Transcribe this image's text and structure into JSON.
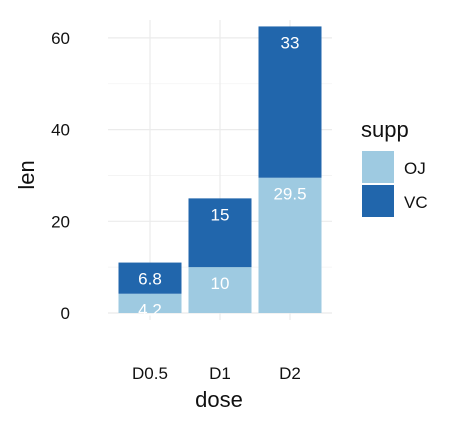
{
  "chart_data": {
    "type": "bar",
    "stacked": true,
    "categories": [
      "D0.5",
      "D1",
      "D2"
    ],
    "series": [
      {
        "name": "OJ",
        "values": [
          4.2,
          10,
          29.5
        ],
        "labels": [
          "4.2",
          "10",
          "29.5"
        ]
      },
      {
        "name": "VC",
        "values": [
          6.8,
          15,
          33
        ],
        "labels": [
          "6.8",
          "15",
          "33"
        ]
      }
    ],
    "xlabel": "dose",
    "ylabel": "len",
    "ylim": [
      0,
      62.5
    ],
    "yticks": [
      0,
      20,
      40,
      60
    ],
    "ytick_labels": [
      "0",
      "20",
      "40",
      "60"
    ],
    "legend": {
      "title": "supp",
      "placement": "right",
      "entries": [
        "OJ",
        "VC"
      ]
    },
    "grid": true,
    "colors": {
      "OJ": "#9ecae1",
      "VC": "#2166ac",
      "grid": "#ebebeb",
      "background": "#ffffff"
    }
  }
}
